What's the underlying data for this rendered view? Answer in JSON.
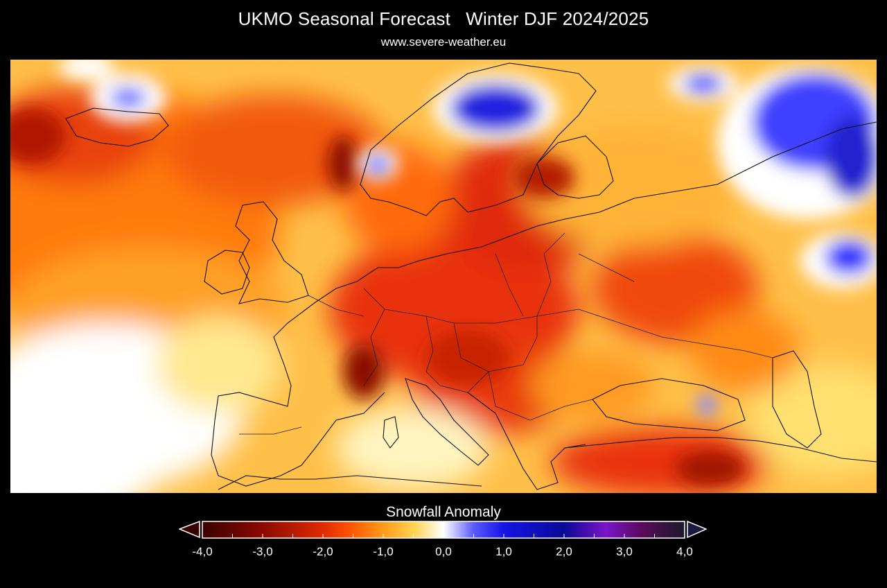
{
  "header": {
    "title": "UKMO Seasonal Forecast   Winter DJF 2024/2025",
    "source": "www.severe-weather.eu"
  },
  "legend": {
    "title": "Snowfall Anomaly",
    "min": -4.0,
    "max": 4.0,
    "tick_labels": [
      "-4,0",
      "-3,0",
      "-2,0",
      "-1,0",
      "0,0",
      "1,0",
      "2,0",
      "3,0",
      "4,0"
    ],
    "below_color": "#3a0000",
    "above_color": "#1a1a40",
    "stops": [
      {
        "value": -4.0,
        "color": "#3a0000"
      },
      {
        "value": -3.0,
        "color": "#8c0a00"
      },
      {
        "value": -2.0,
        "color": "#e02a00"
      },
      {
        "value": -1.5,
        "color": "#ff5a00"
      },
      {
        "value": -1.0,
        "color": "#ff9a1a"
      },
      {
        "value": -0.5,
        "color": "#ffd24d"
      },
      {
        "value": 0.0,
        "color": "#ffffff"
      },
      {
        "value": 0.5,
        "color": "#5a5aff"
      },
      {
        "value": 1.0,
        "color": "#1414e6"
      },
      {
        "value": 2.0,
        "color": "#0a0a96"
      },
      {
        "value": 2.7,
        "color": "#7a14c8"
      },
      {
        "value": 3.3,
        "color": "#5a0a5a"
      },
      {
        "value": 4.0,
        "color": "#1a1a2a"
      }
    ]
  },
  "map": {
    "region": "Europe",
    "variable": "Snowfall Anomaly",
    "season": "DJF 2024/2025"
  }
}
